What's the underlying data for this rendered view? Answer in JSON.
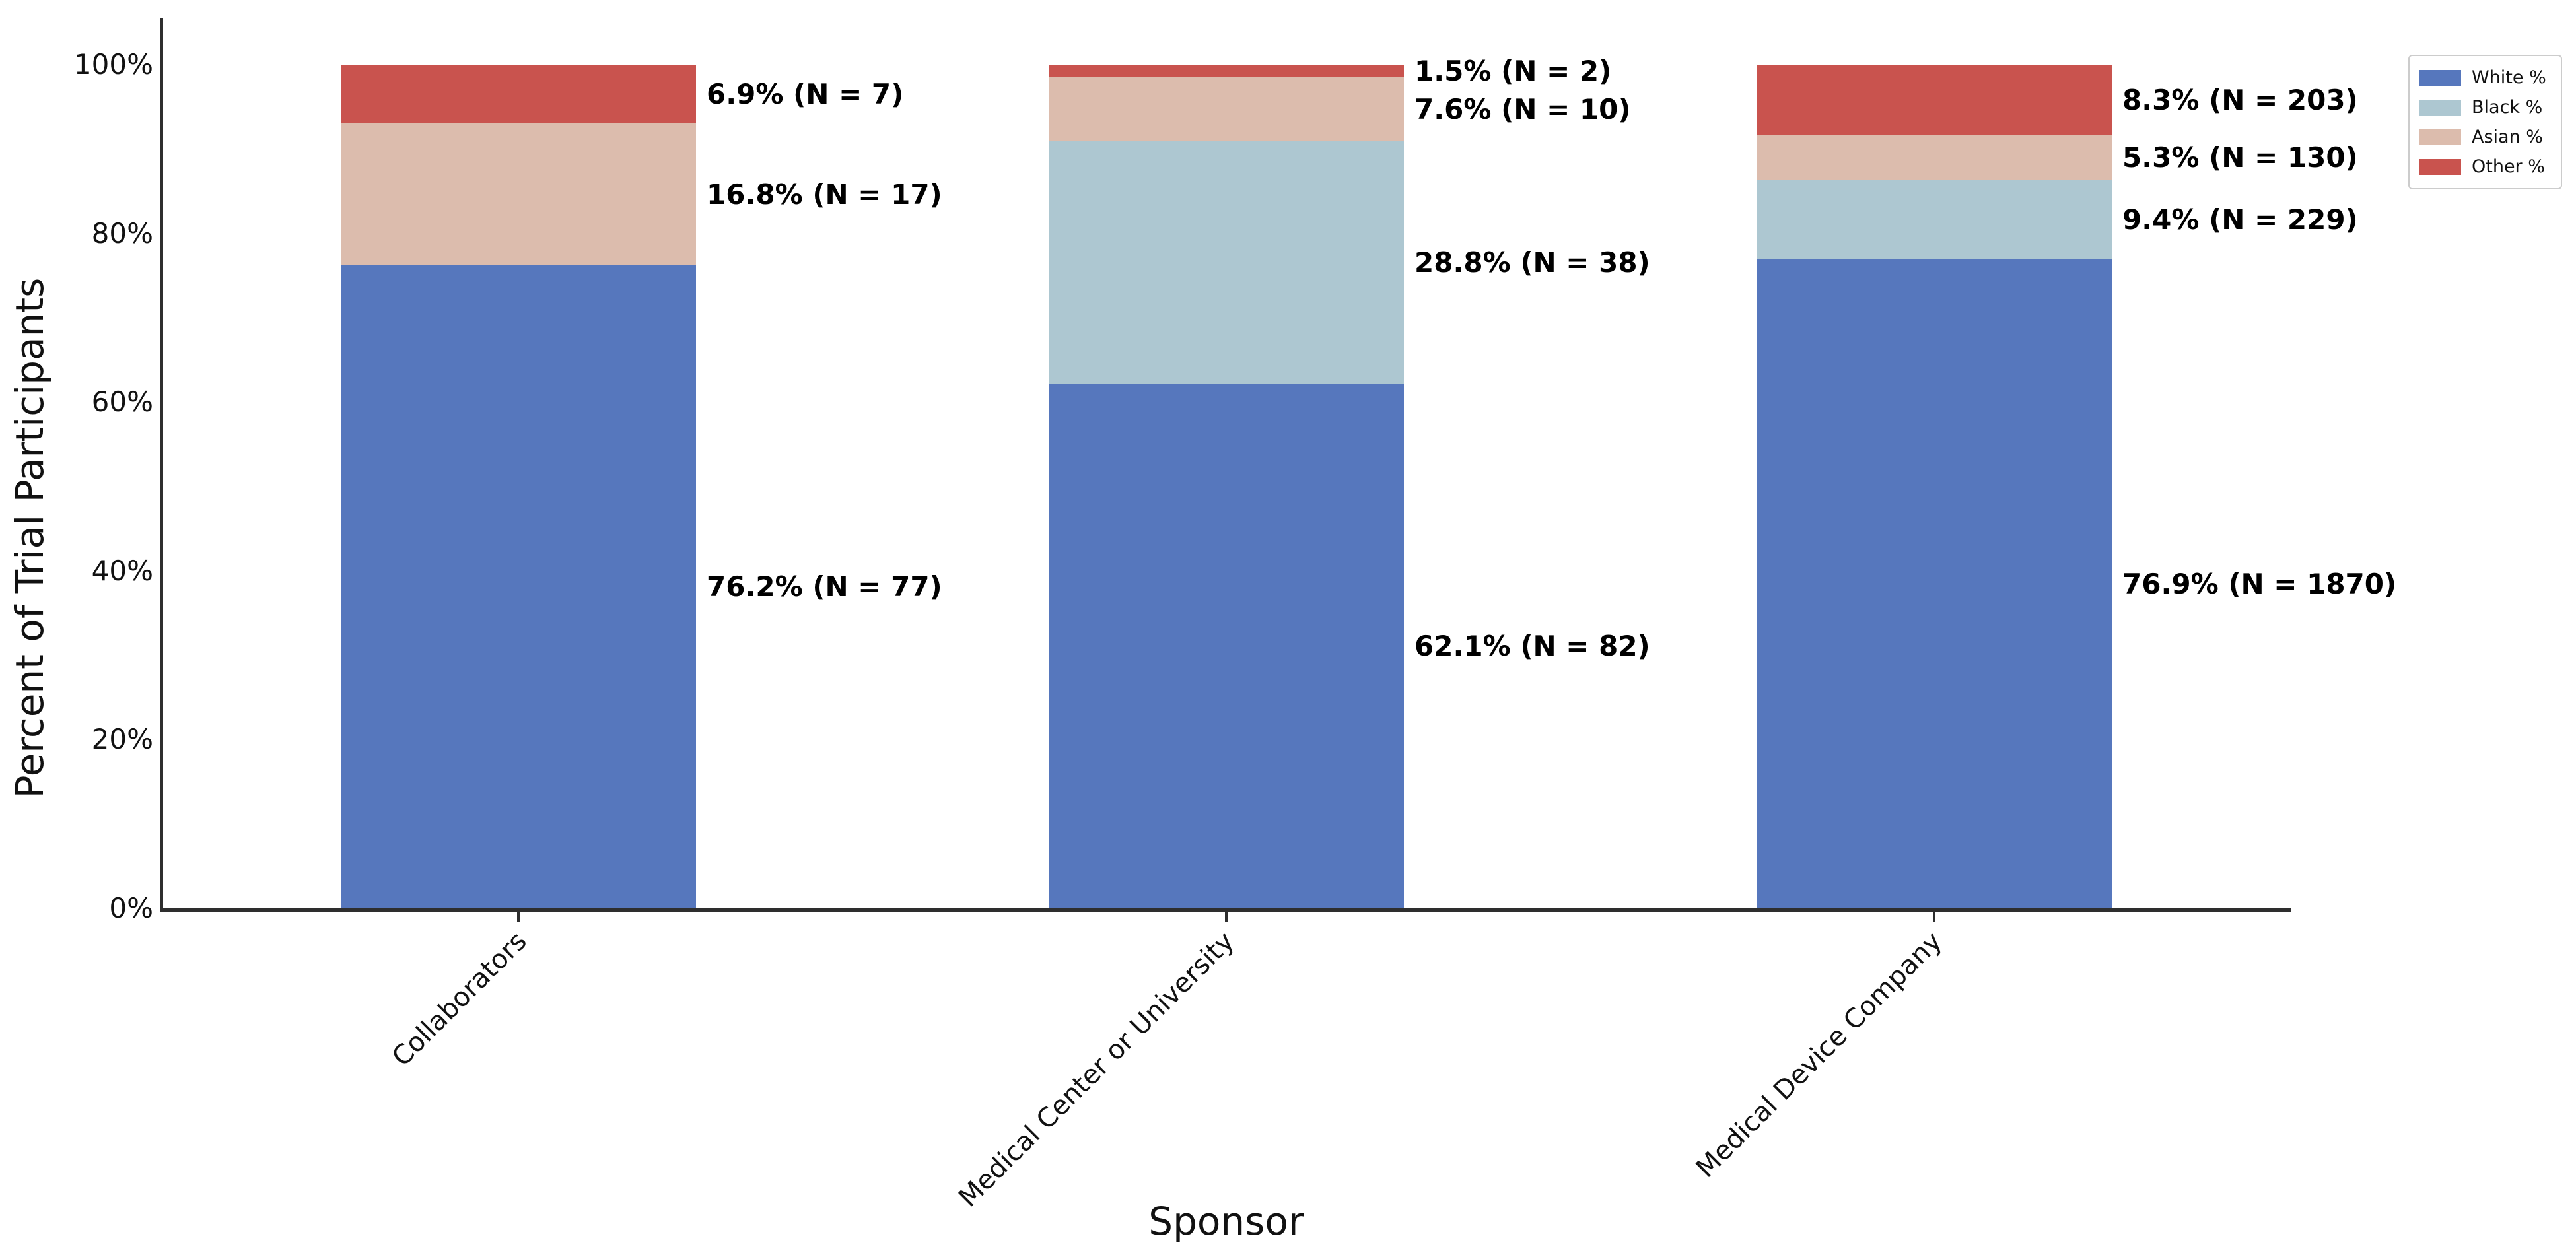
{
  "chart_data": {
    "type": "bar",
    "stacked": true,
    "orientation": "vertical",
    "title": "",
    "xlabel": "Sponsor",
    "ylabel": "Percent of Trial Participants",
    "ylim": [
      0,
      100
    ],
    "grid": false,
    "legend_position": "upper right",
    "y_ticks": [
      {
        "value": 0,
        "label": "0%"
      },
      {
        "value": 20,
        "label": "20%"
      },
      {
        "value": 40,
        "label": "40%"
      },
      {
        "value": 60,
        "label": "60%"
      },
      {
        "value": 80,
        "label": "80%"
      },
      {
        "value": 100,
        "label": "100%"
      }
    ],
    "categories": [
      "Collaborators",
      "Medical Center or University",
      "Medical Device Company"
    ],
    "series": [
      {
        "name": "White %",
        "color": "#5677bd",
        "values": [
          76.2,
          62.1,
          76.9
        ],
        "counts": [
          77,
          82,
          1870
        ],
        "labels": [
          "76.2% (N = 77)",
          "62.1% (N = 82)",
          "76.9% (N = 1870)"
        ]
      },
      {
        "name": "Black %",
        "color": "#adc7d1",
        "values": [
          0,
          28.8,
          9.4
        ],
        "counts": [
          null,
          38,
          229
        ],
        "labels": [
          null,
          "28.8% (N = 38)",
          "9.4% (N = 229)"
        ]
      },
      {
        "name": "Asian %",
        "color": "#dcbcad",
        "values": [
          16.8,
          7.6,
          5.3
        ],
        "counts": [
          17,
          10,
          130
        ],
        "labels": [
          "16.8% (N = 17)",
          "7.6% (N = 10)",
          "5.3% (N = 130)"
        ]
      },
      {
        "name": "Other %",
        "color": "#c9534e",
        "values": [
          6.9,
          1.5,
          8.3
        ],
        "counts": [
          7,
          2,
          203
        ],
        "labels": [
          "6.9% (N = 7)",
          "1.5% (N = 2)",
          "8.3% (N = 203)"
        ]
      }
    ]
  }
}
